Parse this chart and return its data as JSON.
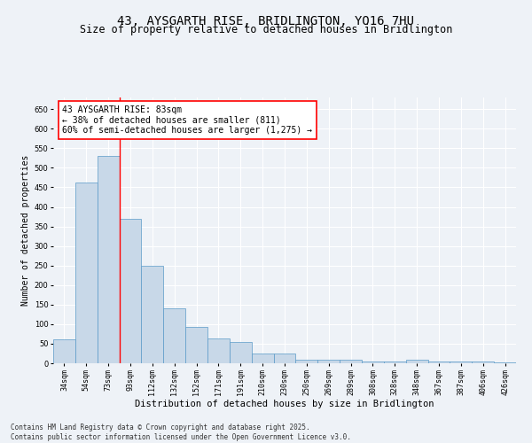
{
  "title": "43, AYSGARTH RISE, BRIDLINGTON, YO16 7HU",
  "subtitle": "Size of property relative to detached houses in Bridlington",
  "xlabel": "Distribution of detached houses by size in Bridlington",
  "ylabel": "Number of detached properties",
  "categories": [
    "34sqm",
    "54sqm",
    "73sqm",
    "93sqm",
    "112sqm",
    "132sqm",
    "152sqm",
    "171sqm",
    "191sqm",
    "210sqm",
    "230sqm",
    "250sqm",
    "269sqm",
    "289sqm",
    "308sqm",
    "328sqm",
    "348sqm",
    "367sqm",
    "387sqm",
    "406sqm",
    "426sqm"
  ],
  "values": [
    62,
    462,
    530,
    370,
    250,
    140,
    92,
    63,
    55,
    25,
    25,
    10,
    10,
    10,
    5,
    5,
    8,
    5,
    5,
    5,
    3
  ],
  "bar_color": "#c8d8e8",
  "bar_edge_color": "#5a9ac8",
  "ylim": [
    0,
    680
  ],
  "yticks": [
    0,
    50,
    100,
    150,
    200,
    250,
    300,
    350,
    400,
    450,
    500,
    550,
    600,
    650
  ],
  "vline_x": 2.5,
  "annotation_title": "43 AYSGARTH RISE: 83sqm",
  "annotation_line1": "← 38% of detached houses are smaller (811)",
  "annotation_line2": "60% of semi-detached houses are larger (1,275) →",
  "footer_line1": "Contains HM Land Registry data © Crown copyright and database right 2025.",
  "footer_line2": "Contains public sector information licensed under the Open Government Licence v3.0.",
  "background_color": "#eef2f7",
  "grid_color": "#ffffff",
  "title_fontsize": 10,
  "subtitle_fontsize": 8.5,
  "tick_fontsize": 6,
  "ylabel_fontsize": 7,
  "xlabel_fontsize": 7.5,
  "annotation_fontsize": 7,
  "footer_fontsize": 5.5
}
